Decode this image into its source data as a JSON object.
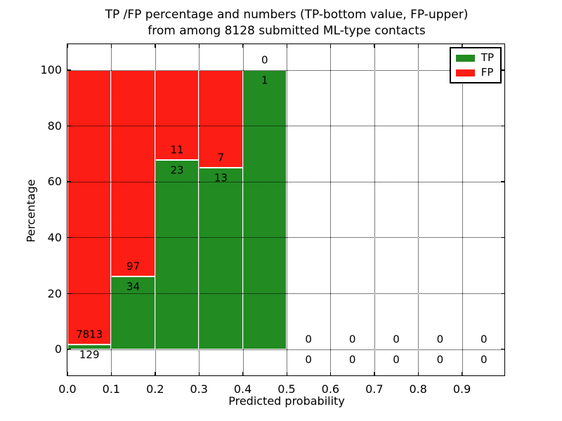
{
  "chart_data": {
    "type": "bar",
    "stacked": true,
    "title": "TP /FP percentage and numbers (TP-bottom value, FP-upper)\nfrom among 8128 submitted ML-type contacts",
    "xlabel": "Predicted probability",
    "ylabel": "Percentage",
    "total_contacts": 8128,
    "xlim": [
      0.0,
      1.0
    ],
    "ylim": [
      -9.9,
      109.2
    ],
    "grid": true,
    "grid_style": "dotted",
    "legend_position": "upper right",
    "xtick_values": [
      0.0,
      0.1,
      0.2,
      0.3,
      0.4,
      0.5,
      0.6,
      0.7,
      0.8,
      0.9
    ],
    "xtick_labels": [
      "0.0",
      "0.1",
      "0.2",
      "0.3",
      "0.4",
      "0.5",
      "0.6",
      "0.7",
      "0.8",
      "0.9"
    ],
    "ytick_values": [
      0,
      20,
      40,
      60,
      80,
      100
    ],
    "ytick_labels": [
      "0",
      "20",
      "40",
      "60",
      "80",
      "100"
    ],
    "bin_edges": [
      0.0,
      0.1,
      0.2,
      0.3,
      0.4,
      0.5,
      0.6,
      0.7,
      0.8,
      0.9,
      1.0
    ],
    "series": [
      {
        "name": "TP",
        "color": "#228b22",
        "label_position": "bottom",
        "counts": [
          129,
          34,
          23,
          13,
          1,
          0,
          0,
          0,
          0,
          0
        ],
        "pct": [
          1.62,
          25.95,
          67.65,
          65.0,
          100.0,
          0,
          0,
          0,
          0,
          0
        ]
      },
      {
        "name": "FP",
        "color": "#fc1d14",
        "label_position": "upper",
        "counts": [
          7813,
          97,
          11,
          7,
          0,
          0,
          0,
          0,
          0,
          0
        ],
        "pct": [
          98.38,
          74.05,
          32.35,
          35.0,
          0,
          0,
          0,
          0,
          0,
          0
        ]
      }
    ]
  },
  "colors": {
    "background": "#ffffff",
    "text": "#000000",
    "axis": "#000000",
    "grid": "#000000",
    "bar_edge": "#ffffff",
    "tp": "#228b22",
    "fp": "#fc1d14"
  }
}
